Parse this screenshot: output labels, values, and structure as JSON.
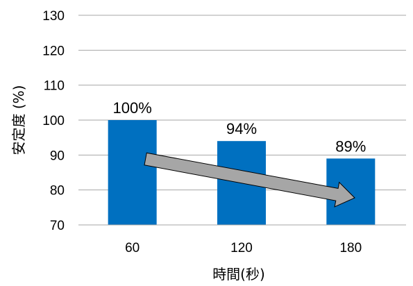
{
  "chart_data": {
    "type": "bar",
    "categories": [
      "60",
      "120",
      "180"
    ],
    "values": [
      100,
      94,
      89
    ],
    "data_labels": [
      "100%",
      "94%",
      "89%"
    ],
    "xlabel": "時間(秒)",
    "ylabel": "安定度 (%)",
    "ylim": [
      70,
      130
    ],
    "yticks": [
      "70",
      "80",
      "90",
      "100",
      "110",
      "120",
      "130"
    ],
    "grid": true,
    "legend": "none",
    "bar_color": "#0070C0",
    "annotation": {
      "type": "arrow",
      "direction": "down-right",
      "color": "#A6A6A6"
    }
  }
}
